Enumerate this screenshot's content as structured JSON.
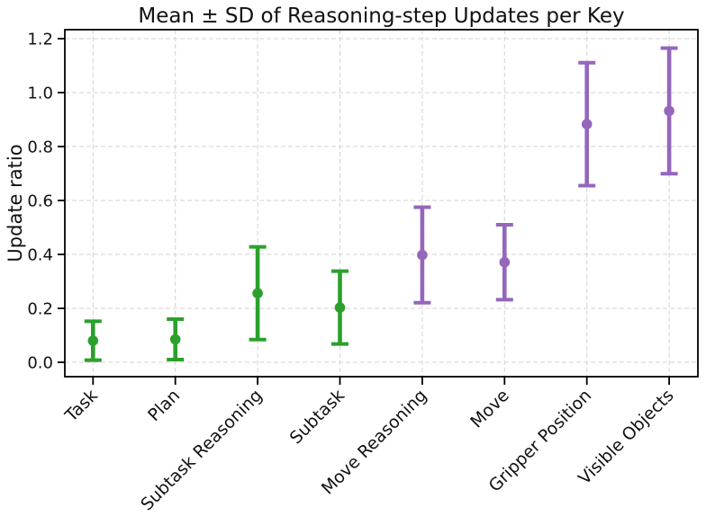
{
  "chart_data": {
    "type": "scatter",
    "subtype": "errorbar",
    "title": "Mean ± SD of Reasoning-step Updates per Key",
    "xlabel": "",
    "ylabel": "Update ratio",
    "categories": [
      "Task",
      "Plan",
      "Subtask Reasoning",
      "Subtask",
      "Move Reasoning",
      "Move",
      "Gripper Position",
      "Visible Objects"
    ],
    "points": [
      {
        "category": "Task",
        "mean": 0.08,
        "sd": 0.072,
        "color": "#2ca02c"
      },
      {
        "category": "Plan",
        "mean": 0.085,
        "sd": 0.075,
        "color": "#2ca02c"
      },
      {
        "category": "Subtask Reasoning",
        "mean": 0.256,
        "sd": 0.172,
        "color": "#2ca02c"
      },
      {
        "category": "Subtask",
        "mean": 0.203,
        "sd": 0.135,
        "color": "#2ca02c"
      },
      {
        "category": "Move Reasoning",
        "mean": 0.398,
        "sd": 0.177,
        "color": "#9467bd"
      },
      {
        "category": "Move",
        "mean": 0.371,
        "sd": 0.139,
        "color": "#9467bd"
      },
      {
        "category": "Gripper Position",
        "mean": 0.883,
        "sd": 0.228,
        "color": "#9467bd"
      },
      {
        "category": "Visible Objects",
        "mean": 0.932,
        "sd": 0.233,
        "color": "#9467bd"
      }
    ],
    "yticks": [
      0.0,
      0.2,
      0.4,
      0.6,
      0.8,
      1.0,
      1.2
    ],
    "ylim": [
      -0.053,
      1.233
    ],
    "grid": true,
    "grid_style": "dashed",
    "legend": "none",
    "x_tick_rotation": -45,
    "colors": {
      "reasoning_keys_green": "#2ca02c",
      "state_keys_purple": "#9467bd",
      "grid": "#d3d3d3",
      "spine": "#000000",
      "text": "#111111"
    }
  }
}
